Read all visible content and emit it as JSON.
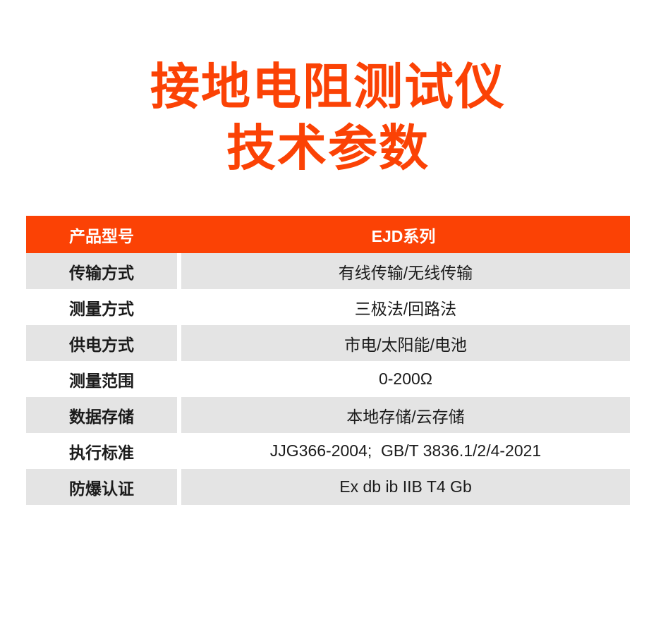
{
  "title": {
    "line1": "接地电阻测试仪",
    "line2": "技术参数"
  },
  "table": {
    "header": {
      "col1": "产品型号",
      "col2": "EJD系列"
    },
    "rows": [
      {
        "label": "传输方式",
        "value": "有线传输/无线传输"
      },
      {
        "label": "测量方式",
        "value": "三极法/回路法"
      },
      {
        "label": "供电方式",
        "value": "市电/太阳能/电池"
      },
      {
        "label": "测量范围",
        "value": "0-200Ω"
      },
      {
        "label": "数据存储",
        "value": "本地存储/云存储"
      },
      {
        "label": "执行标准",
        "value": "JJG366-2004;  GB/T 3836.1/2/4-2021"
      },
      {
        "label": "防爆认证",
        "value": "Ex db ib IIB T4 Gb"
      }
    ]
  },
  "colors": {
    "accent_orange": "#fb4205",
    "row_gray": "#e4e4e4",
    "text_dark": "#1b1b1b",
    "header_text": "#ffffff"
  }
}
